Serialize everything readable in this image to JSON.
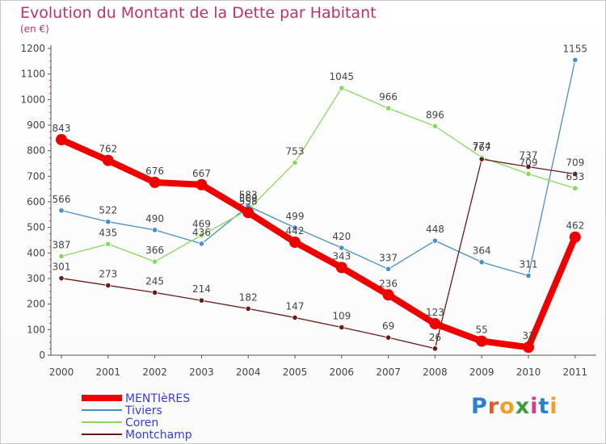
{
  "title": "Evolution du Montant de la Dette par Habitant",
  "subtitle": "(en €)",
  "logo": "Proxiti",
  "chart_data": {
    "type": "line",
    "title": "Evolution du Montant de la Dette par Habitant",
    "ylabel": "(en €)",
    "ylim": [
      0,
      1200
    ],
    "yticks": [
      0,
      100,
      200,
      300,
      400,
      500,
      600,
      700,
      800,
      900,
      1000,
      1100,
      1200
    ],
    "categories": [
      "2000",
      "2001",
      "2002",
      "2003",
      "2004",
      "2005",
      "2006",
      "2007",
      "2008",
      "2009",
      "2010",
      "2011"
    ],
    "grid": false,
    "legend": "bottom-left",
    "series": [
      {
        "name": "MENTIèRES",
        "color": "#ee0000",
        "values": [
          843,
          762,
          676,
          667,
          558,
          442,
          343,
          236,
          123,
          55,
          31,
          462
        ]
      },
      {
        "name": "Tiviers",
        "color": "#4a90c8",
        "values": [
          566,
          522,
          490,
          436,
          583,
          499,
          420,
          337,
          448,
          364,
          311,
          1155
        ]
      },
      {
        "name": "Coren",
        "color": "#88d860",
        "values": [
          387,
          435,
          366,
          469,
          569,
          753,
          1045,
          966,
          896,
          774,
          709,
          653
        ]
      },
      {
        "name": "Montchamp",
        "color": "#6b1a1a",
        "values": [
          301,
          273,
          245,
          214,
          182,
          147,
          109,
          69,
          26,
          767,
          737,
          709
        ]
      }
    ]
  }
}
